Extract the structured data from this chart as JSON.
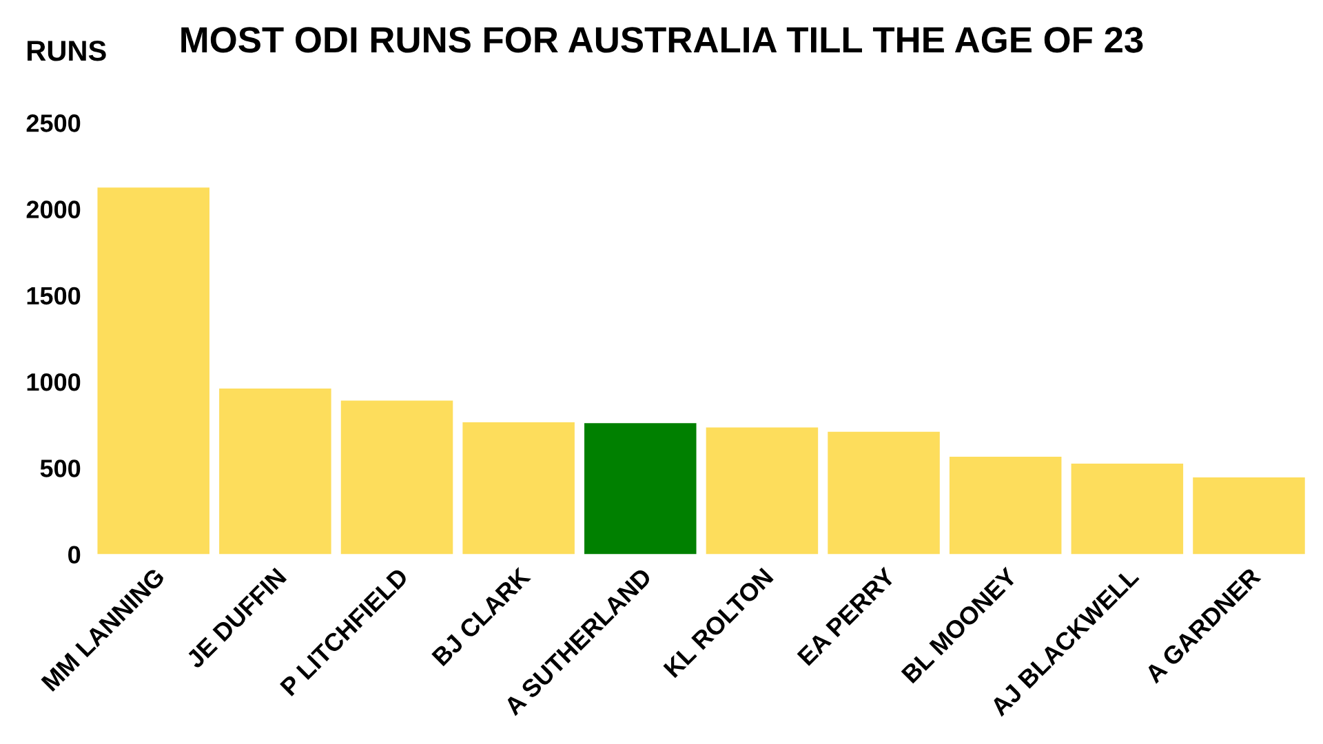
{
  "chart_data": {
    "type": "bar",
    "title": "MOST ODI RUNS FOR AUSTRALIA TILL THE AGE OF 23",
    "ylabel": "RUNS",
    "categories": [
      "MM LANNING",
      "JE DUFFIN",
      "P LITCHFIELD",
      "BJ CLARK",
      "A SUTHERLAND",
      "KL ROLTON",
      "EA PERRY",
      "BL MOONEY",
      "AJ BLACKWELL",
      "A GARDNER"
    ],
    "values": [
      2125,
      960,
      890,
      765,
      760,
      735,
      710,
      565,
      525,
      445
    ],
    "colors": [
      "#fddd5c",
      "#fddd5c",
      "#fddd5c",
      "#fddd5c",
      "#008000",
      "#fddd5c",
      "#fddd5c",
      "#fddd5c",
      "#fddd5c",
      "#fddd5c"
    ],
    "ylim": [
      0,
      2500
    ],
    "yticks": [
      0,
      500,
      1000,
      1500,
      2000,
      2500
    ],
    "grid": false,
    "legend": false
  }
}
